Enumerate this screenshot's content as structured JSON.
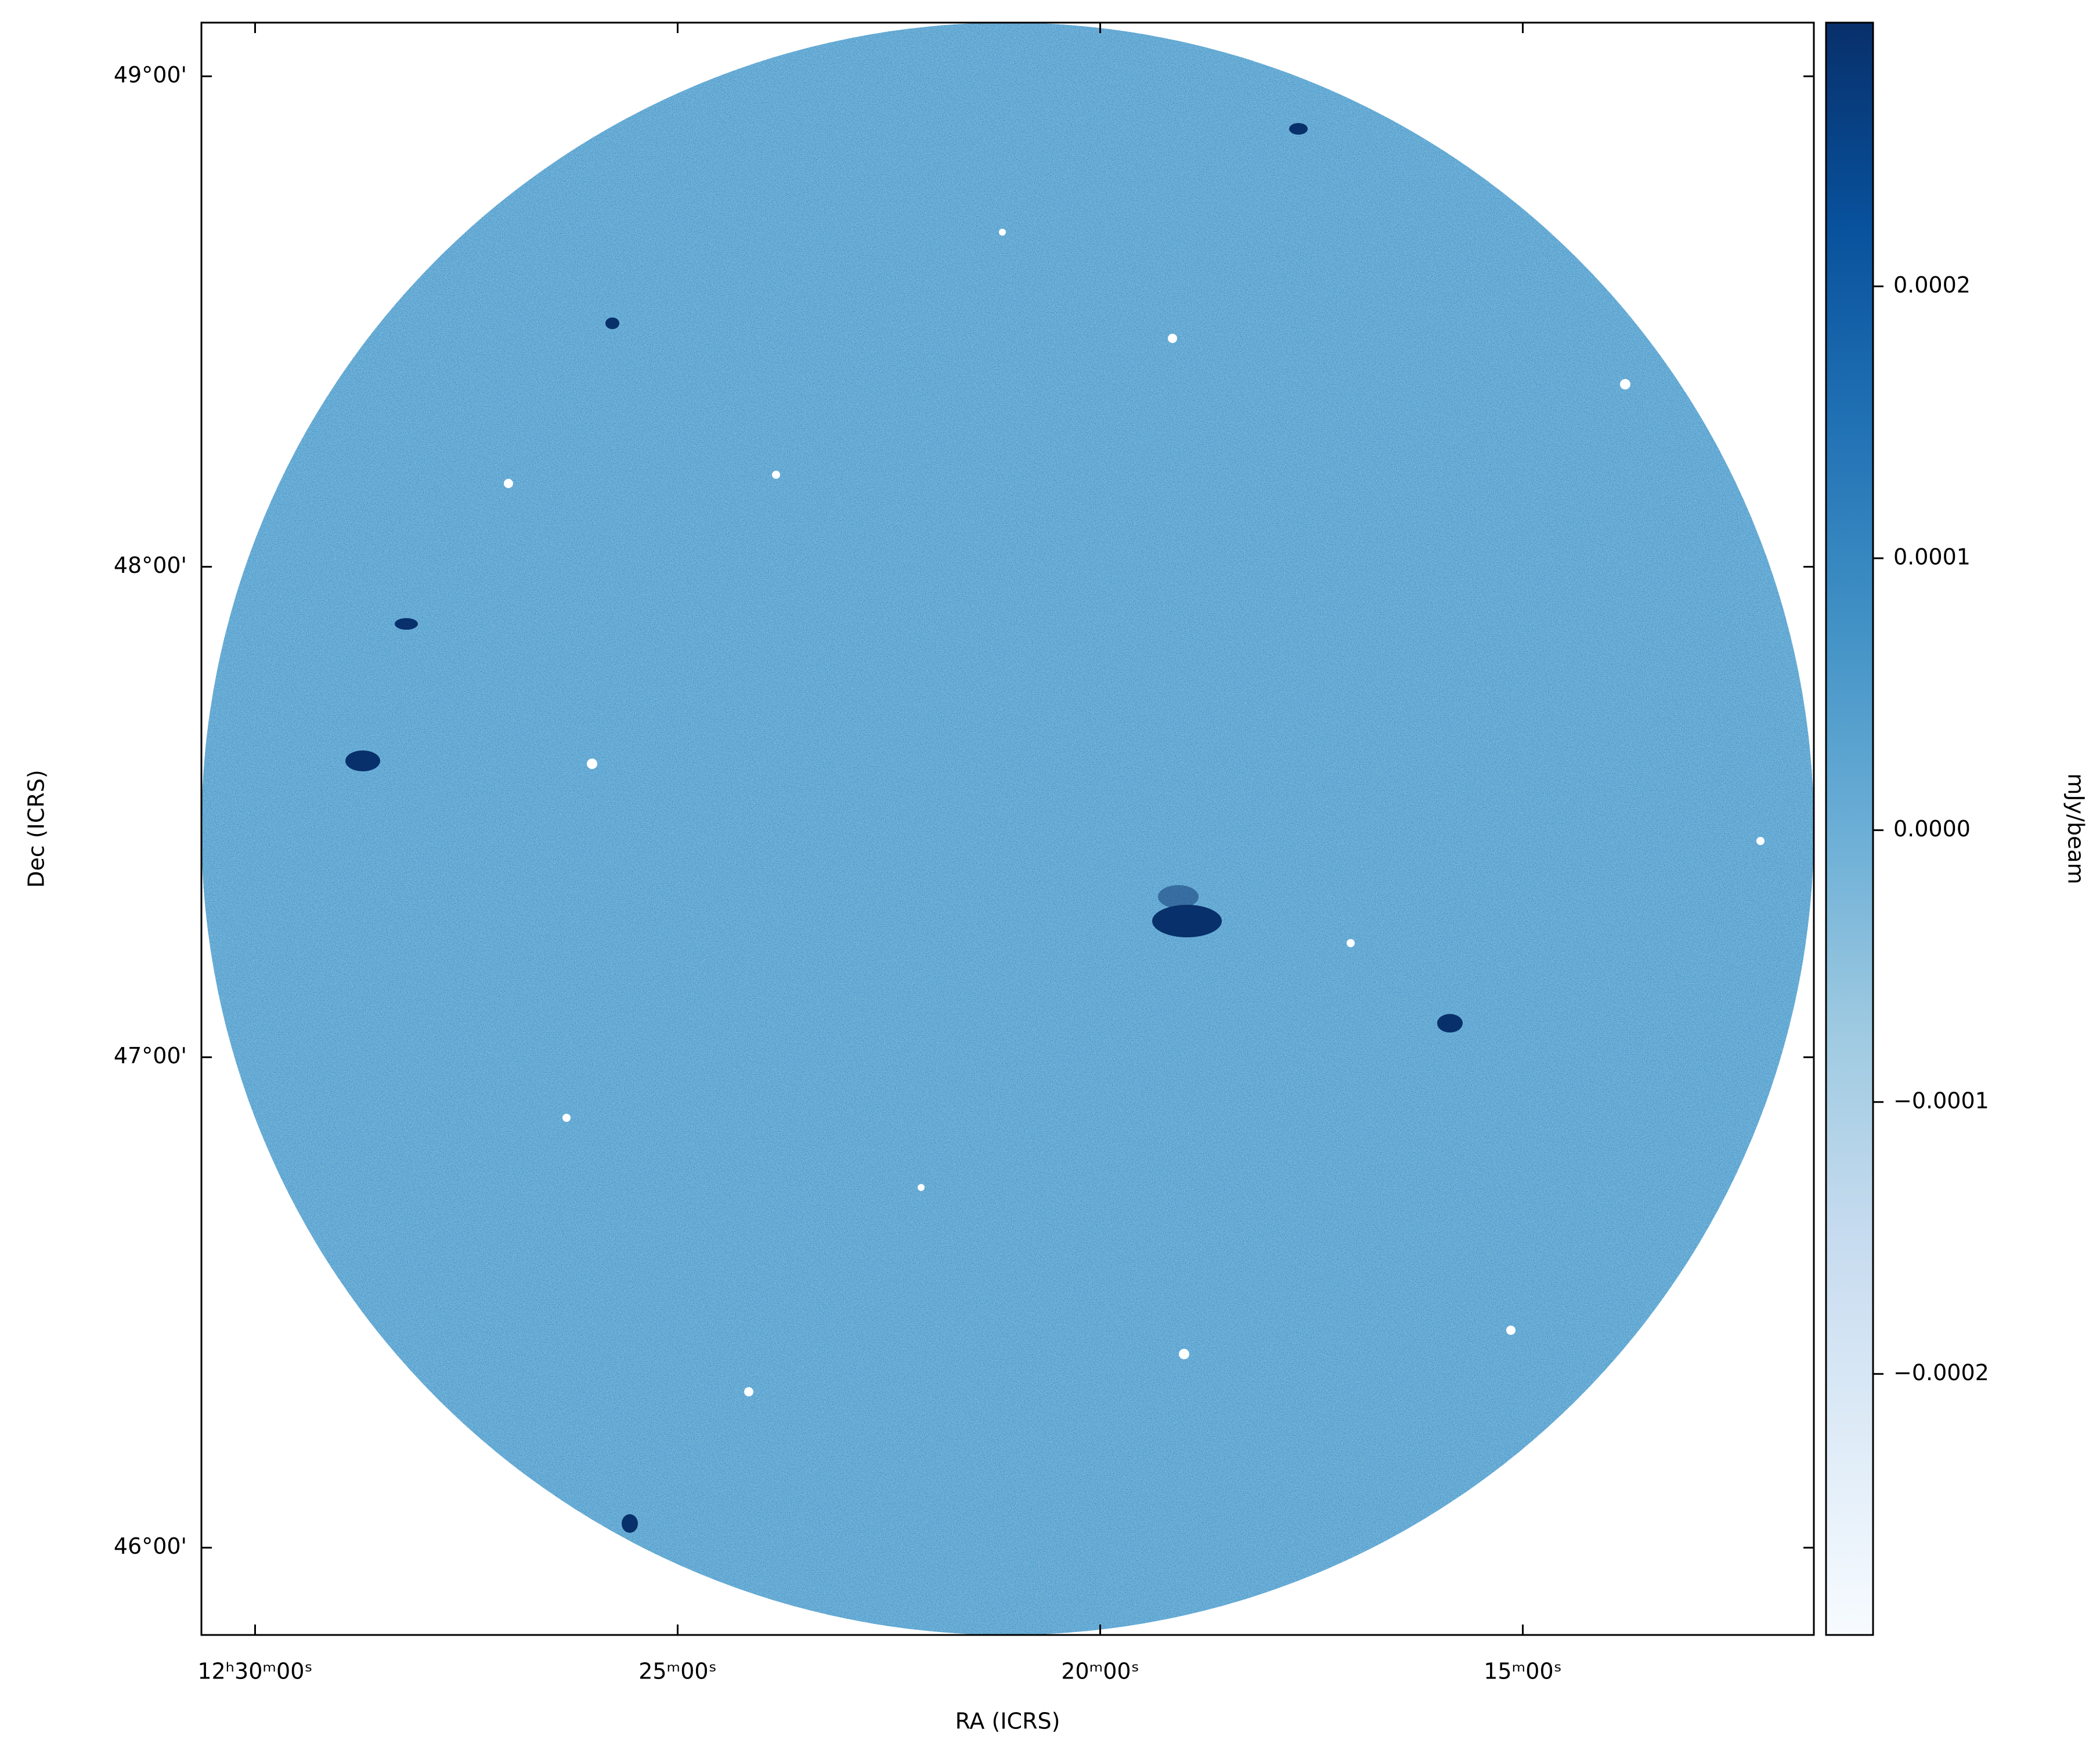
{
  "chart_data": {
    "type": "image",
    "xlabel": "RA (ICRS)",
    "ylabel": "Dec (ICRS)",
    "xlim": [
      30.635,
      11.556
    ],
    "xticks": [
      {
        "value": 30,
        "label": "12ʰ30ᵐ00ˢ"
      },
      {
        "value": 25,
        "label": "25ᵐ00ˢ"
      },
      {
        "value": 20,
        "label": "20ᵐ00ˢ"
      },
      {
        "value": 15,
        "label": "15ᵐ00ˢ"
      }
    ],
    "ylim": [
      45.822,
      49.1095
    ],
    "yticks": [
      {
        "value": 46,
        "label": "46°00'"
      },
      {
        "value": 47,
        "label": "47°00'"
      },
      {
        "value": 48,
        "label": "48°00'"
      },
      {
        "value": 49,
        "label": "49°00'"
      }
    ],
    "colorbar": {
      "label": "mJy/beam",
      "lim": [
        -0.000296,
        0.000297
      ],
      "ticks": [
        {
          "value": -0.0002,
          "label": "−0.0002"
        },
        {
          "value": -0.0001,
          "label": "−0.0001"
        },
        {
          "value": 0,
          "label": "0.0000"
        },
        0.0001,
        0.0002
      ],
      "colors": [
        "#f7fbff",
        "#deebf7",
        "#c6dbef",
        "#9ecae1",
        "#6baed6",
        "#4292c6",
        "#2171b5",
        "#08519c",
        "#08306b"
      ]
    }
  }
}
